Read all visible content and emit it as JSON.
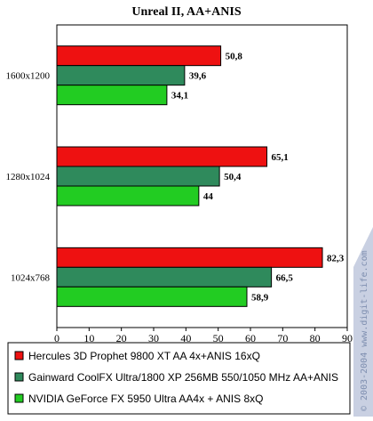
{
  "chart_data": {
    "type": "bar",
    "orientation": "horizontal",
    "title": "Unreal II, AA+ANIS",
    "categories": [
      "1600x1200",
      "1280x1024",
      "1024x768"
    ],
    "series": [
      {
        "name": "Hercules 3D Prophet 9800 XT AA 4x+ANIS 16xQ",
        "color": "#ee1111",
        "values": [
          50.8,
          65.1,
          82.3
        ],
        "labels": [
          "50,8",
          "65,1",
          "82,3"
        ]
      },
      {
        "name": "Gainward CoolFX Ultra/1800 XP 256MB 550/1050 MHz AA+ANIS",
        "color": "#2f8a5c",
        "values": [
          39.6,
          50.4,
          66.5
        ],
        "labels": [
          "39,6",
          "50,4",
          "66,5"
        ]
      },
      {
        "name": "NVIDIA GeForce FX 5950 Ultra AA4x + ANIS 8xQ",
        "color": "#22cc22",
        "values": [
          34.1,
          44,
          58.9
        ],
        "labels": [
          "34,1",
          "44",
          "58,9"
        ]
      }
    ],
    "xlim": [
      0,
      90
    ],
    "xticks": [
      0,
      10,
      20,
      30,
      40,
      50,
      60,
      70,
      80,
      90
    ],
    "grid": false,
    "legend_position": "bottom"
  },
  "watermark": "© 2003-2004 www.digit-life.com"
}
